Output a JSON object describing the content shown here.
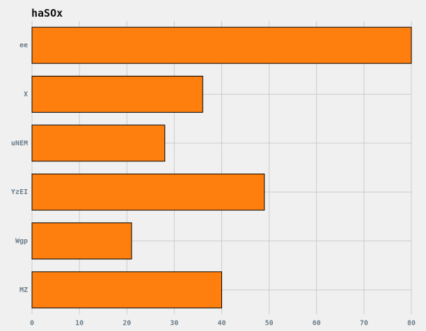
{
  "chart_data": {
    "type": "bar",
    "orientation": "horizontal",
    "title": "haSOx",
    "xlabel": "",
    "ylabel": "",
    "categories": [
      "ee",
      "X",
      "uNEM",
      "YzEI",
      "Wgp",
      "MZ"
    ],
    "values": [
      80,
      36,
      28,
      49,
      21,
      40
    ],
    "xlim": [
      0,
      80
    ],
    "xticks": [
      0,
      10,
      20,
      30,
      40,
      50,
      60,
      70,
      80
    ],
    "grid": true,
    "bar_color": "#ff7f0e",
    "edge_color": "#000000",
    "grid_color": "#cbcbcb",
    "background_color": "#f0f0f0"
  }
}
